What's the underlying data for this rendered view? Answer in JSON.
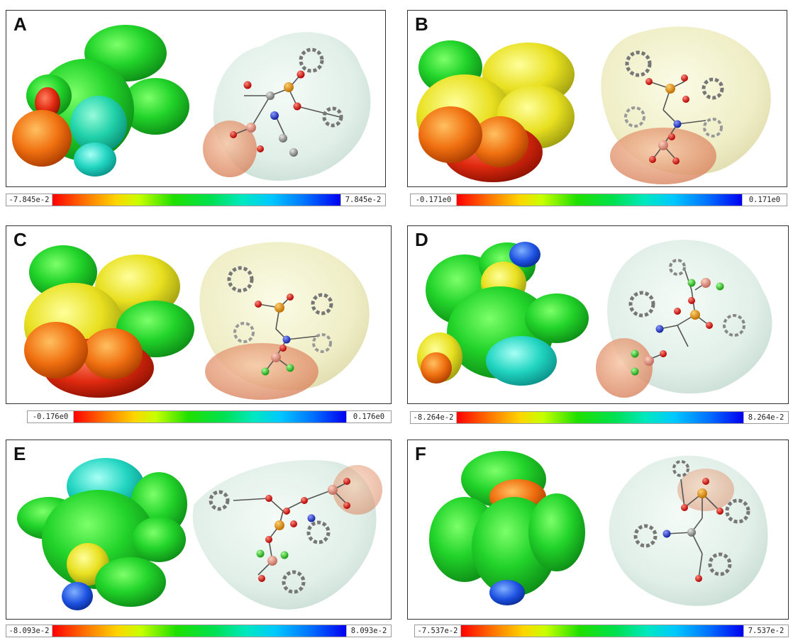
{
  "panels": [
    {
      "letter": "A",
      "scale_min": "-7.845e-2",
      "scale_max": "7.845e-2"
    },
    {
      "letter": "B",
      "scale_min": "-0.171e0",
      "scale_max": "0.171e0"
    },
    {
      "letter": "C",
      "scale_min": "-0.176e0",
      "scale_max": "0.176e0"
    },
    {
      "letter": "D",
      "scale_min": "-8.264e-2",
      "scale_max": "8.264e-2"
    },
    {
      "letter": "E",
      "scale_min": "-8.093e-2",
      "scale_max": "8.093e-2"
    },
    {
      "letter": "F",
      "scale_min": "-7.537e-2",
      "scale_max": "7.537e-2"
    }
  ],
  "colors": {
    "negative": "#ff0000",
    "neutral": "#00e000",
    "positive": "#0000f0",
    "panel_border": "#333333"
  }
}
